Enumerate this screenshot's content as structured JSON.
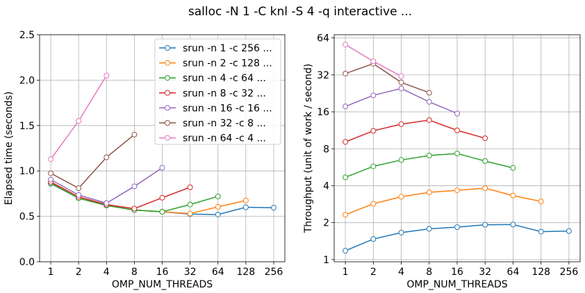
{
  "figure_title": "salloc -N 1 -C knl -S 4 -q interactive ...",
  "chart_data": [
    {
      "type": "line",
      "xlabel": "OMP_NUM_THREADS",
      "ylabel": "Elapsed time (seconds)",
      "x_scale": "log2",
      "y_scale": "linear",
      "x_ticks": [
        1,
        2,
        4,
        8,
        16,
        32,
        64,
        128,
        256
      ],
      "x_tick_labels": [
        "1",
        "2",
        "4",
        "8",
        "16",
        "32",
        "64",
        "128",
        "256"
      ],
      "y_ticks": [
        0.0,
        0.5,
        1.0,
        1.5,
        2.0,
        2.5
      ],
      "y_tick_labels": [
        "0.0",
        "0.5",
        "1.0",
        "1.5",
        "2.0",
        "2.5"
      ],
      "ylim": [
        0.0,
        2.5
      ],
      "grid": true,
      "legend": "top-right",
      "series": [
        {
          "name": "srun -n 1 -c 256 ...",
          "color": "#1f77b4",
          "x": [
            1,
            2,
            4,
            8,
            16,
            32,
            64,
            128,
            256
          ],
          "y": [
            0.86,
            0.7,
            0.62,
            0.57,
            0.55,
            0.525,
            0.52,
            0.6,
            0.595
          ]
        },
        {
          "name": "srun -n 2 -c 128 ...",
          "color": "#ff7f0e",
          "x": [
            1,
            2,
            4,
            8,
            16,
            32,
            64,
            128
          ],
          "y": [
            0.87,
            0.7,
            0.62,
            0.57,
            0.55,
            0.53,
            0.605,
            0.675
          ]
        },
        {
          "name": "srun -n 4 -c 64 ...",
          "color": "#2ca02c",
          "x": [
            1,
            2,
            4,
            8,
            16,
            32,
            64
          ],
          "y": [
            0.865,
            0.7,
            0.62,
            0.57,
            0.55,
            0.63,
            0.72
          ]
        },
        {
          "name": "srun -n 8 -c 32 ...",
          "color": "#d62728",
          "x": [
            1,
            2,
            4,
            8,
            16,
            32
          ],
          "y": [
            0.88,
            0.715,
            0.63,
            0.585,
            0.705,
            0.82
          ]
        },
        {
          "name": "srun -n 16 -c 16 ...",
          "color": "#9467bd",
          "x": [
            1,
            2,
            4,
            8,
            16
          ],
          "y": [
            0.905,
            0.735,
            0.645,
            0.83,
            1.035
          ]
        },
        {
          "name": "srun -n 32 -c 8 ...",
          "color": "#8c564b",
          "x": [
            1,
            2,
            4,
            8
          ],
          "y": [
            0.975,
            0.81,
            1.15,
            1.4
          ]
        },
        {
          "name": "srun -n 64 -c 4 ...",
          "color": "#e377c2",
          "x": [
            1,
            2,
            4
          ],
          "y": [
            1.13,
            1.55,
            2.05
          ]
        }
      ]
    },
    {
      "type": "line",
      "xlabel": "OMP_NUM_THREADS",
      "ylabel": "Throughput (unit of work / second)",
      "x_scale": "log2",
      "y_scale": "log2",
      "x_ticks": [
        1,
        2,
        4,
        8,
        16,
        32,
        64,
        128,
        256
      ],
      "x_tick_labels": [
        "1",
        "2",
        "4",
        "8",
        "16",
        "32",
        "64",
        "128",
        "256"
      ],
      "y_ticks": [
        1,
        2,
        4,
        8,
        16,
        32,
        64
      ],
      "y_tick_labels": [
        "1",
        "2",
        "4",
        "8",
        "16",
        "32",
        "64"
      ],
      "ylim": [
        0.96,
        68
      ],
      "grid": true,
      "series": [
        {
          "name": "srun -n 1 -c 256 ...",
          "color": "#1f77b4",
          "x": [
            1,
            2,
            4,
            8,
            16,
            32,
            64,
            128,
            256
          ],
          "y": [
            1.18,
            1.47,
            1.66,
            1.78,
            1.84,
            1.92,
            1.93,
            1.69,
            1.71
          ]
        },
        {
          "name": "srun -n 2 -c 128 ...",
          "color": "#ff7f0e",
          "x": [
            1,
            2,
            4,
            8,
            16,
            32,
            64,
            128
          ],
          "y": [
            2.32,
            2.85,
            3.25,
            3.53,
            3.67,
            3.82,
            3.32,
            2.98
          ]
        },
        {
          "name": "srun -n 4 -c 64 ...",
          "color": "#2ca02c",
          "x": [
            1,
            2,
            4,
            8,
            16,
            32,
            64
          ],
          "y": [
            4.68,
            5.75,
            6.48,
            7.05,
            7.32,
            6.35,
            5.58
          ]
        },
        {
          "name": "srun -n 8 -c 32 ...",
          "color": "#d62728",
          "x": [
            1,
            2,
            4,
            8,
            16,
            32
          ],
          "y": [
            9.1,
            11.2,
            12.7,
            13.7,
            11.3,
            9.75
          ]
        },
        {
          "name": "srun -n 16 -c 16 ...",
          "color": "#9467bd",
          "x": [
            1,
            2,
            4,
            8,
            16
          ],
          "y": [
            17.7,
            21.8,
            24.8,
            19.3,
            15.5
          ]
        },
        {
          "name": "srun -n 32 -c 8 ...",
          "color": "#8c564b",
          "x": [
            1,
            2,
            4,
            8
          ],
          "y": [
            32.8,
            39.5,
            27.8,
            22.9
          ]
        },
        {
          "name": "srun -n 64 -c 4 ...",
          "color": "#e377c2",
          "x": [
            1,
            2,
            4
          ],
          "y": [
            56.5,
            41.3,
            31.2
          ]
        }
      ]
    }
  ]
}
